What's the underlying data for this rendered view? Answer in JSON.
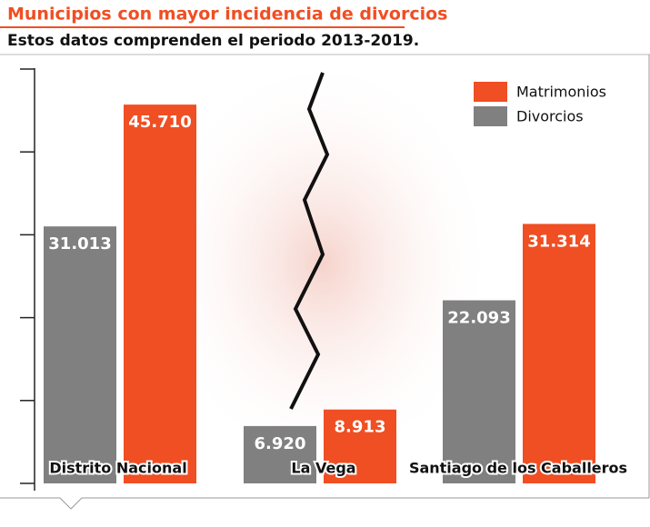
{
  "chart_data": {
    "type": "bar",
    "title": "Municipios con mayor incidencia de divorcios",
    "subtitle": "Estos datos comprenden el periodo 2013-2019.",
    "categories": [
      "Distrito Nacional",
      "La Vega",
      "Santiago de los Caballeros"
    ],
    "series": [
      {
        "name": "Matrimonios",
        "color": "#f04e23",
        "values": [
          45710,
          8913,
          31314
        ],
        "value_labels": [
          "45.710",
          "8.913",
          "31.314"
        ]
      },
      {
        "name": "Divorcios",
        "color": "#808080",
        "values": [
          31013,
          6920,
          22093
        ],
        "value_labels": [
          "31.013",
          "6.920",
          "22.093"
        ]
      }
    ],
    "ylim": [
      0,
      50000
    ],
    "yticks": [
      0,
      10000,
      20000,
      30000,
      40000,
      50000
    ],
    "legend": "top-right"
  }
}
